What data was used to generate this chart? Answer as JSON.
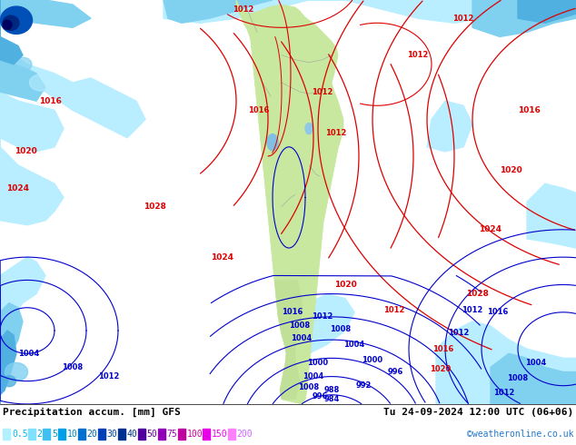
{
  "title_left": "Precipitation accum. [mm] GFS",
  "title_right": "Tu 24-09-2024 12:00 UTC (06+06)",
  "credit": "©weatheronline.co.uk",
  "legend_values": [
    "0.5",
    "2",
    "5",
    "10",
    "20",
    "30",
    "40",
    "50",
    "75",
    "100",
    "150",
    "200"
  ],
  "legend_colors_hex": [
    "#b0f0ff",
    "#80e0ff",
    "#40c0f0",
    "#00a0e8",
    "#0070d0",
    "#0040b8",
    "#003090",
    "#5000a0",
    "#9000b8",
    "#c000a0",
    "#e800e8",
    "#ff80ff"
  ],
  "legend_text_colors": [
    "#00bbee",
    "#00aadd",
    "#0099cc",
    "#0088bb",
    "#0066aa",
    "#004499",
    "#003388",
    "#660099",
    "#9900bb",
    "#cc0099",
    "#ee00ee",
    "#cc66ff"
  ],
  "ocean_color": "#f0f8ff",
  "land_color": "#c8e8a0",
  "precip_colors": {
    "light": "#b8eeff",
    "medium_light": "#80d0f0",
    "medium": "#50b0e0",
    "medium_dark": "#2080d0",
    "dark": "#0050b8",
    "very_dark": "#002880",
    "darkest": "#000060"
  },
  "red_contour": "#dd0000",
  "blue_contour": "#0000cc",
  "figsize": [
    6.34,
    4.9
  ],
  "dpi": 100
}
